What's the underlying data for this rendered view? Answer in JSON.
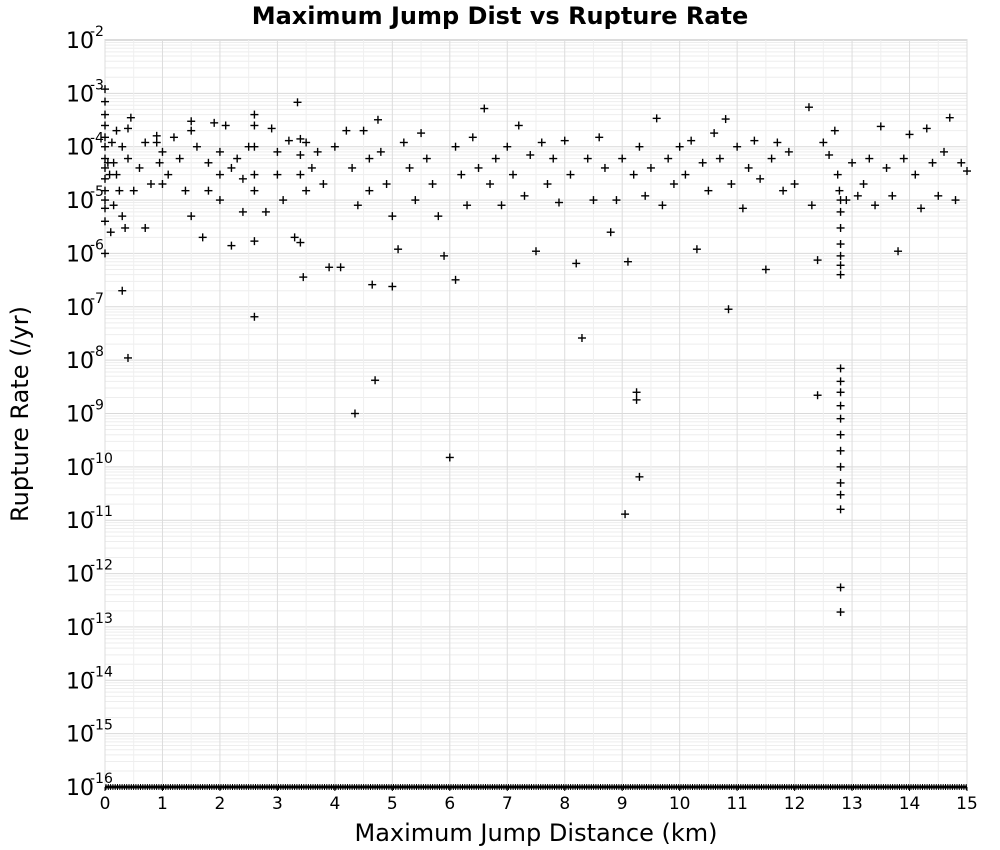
{
  "chart_data": {
    "type": "scatter",
    "title": "Maximum Jump Dist vs Rupture Rate",
    "xlabel": "Maximum Jump Distance (km)",
    "ylabel": "Rupture Rate (/yr)",
    "xlim": [
      0,
      15
    ],
    "ylim": [
      1e-16,
      0.01
    ],
    "yscale": "log",
    "grid": true,
    "legend": "none",
    "marker": "plus",
    "marker_color": "#000000",
    "xticks": [
      "0",
      "1",
      "2",
      "3",
      "4",
      "5",
      "6",
      "7",
      "8",
      "9",
      "10",
      "11",
      "12",
      "13",
      "14",
      "15"
    ],
    "yticks": [
      {
        "base": "10",
        "exp": "-2"
      },
      {
        "base": "10",
        "exp": "-3"
      },
      {
        "base": "10",
        "exp": "-4"
      },
      {
        "base": "10",
        "exp": "-5"
      },
      {
        "base": "10",
        "exp": "-6"
      },
      {
        "base": "10",
        "exp": "-7"
      },
      {
        "base": "10",
        "exp": "-8"
      },
      {
        "base": "10",
        "exp": "-9"
      },
      {
        "base": "10",
        "exp": "-10"
      },
      {
        "base": "10",
        "exp": "-11"
      },
      {
        "base": "10",
        "exp": "-12"
      },
      {
        "base": "10",
        "exp": "-13"
      },
      {
        "base": "10",
        "exp": "-14"
      },
      {
        "base": "10",
        "exp": "-15"
      },
      {
        "base": "10",
        "exp": "-16"
      }
    ],
    "points": [
      [
        0.0,
        0.0012
      ],
      [
        0.0,
        0.0007
      ],
      [
        0.0,
        0.0004
      ],
      [
        0.0,
        0.00025
      ],
      [
        0.0,
        0.00015
      ],
      [
        0.0,
        0.0001
      ],
      [
        0.0,
        6e-05
      ],
      [
        0.0,
        4e-05
      ],
      [
        0.0,
        2.5e-05
      ],
      [
        0.0,
        1.5e-05
      ],
      [
        0.0,
        1e-05
      ],
      [
        0.0,
        7e-06
      ],
      [
        0.0,
        4e-06
      ],
      [
        0.0,
        1e-06
      ],
      [
        0.05,
        5e-05
      ],
      [
        0.08,
        3e-05
      ],
      [
        0.1,
        2.5e-06
      ],
      [
        0.12,
        0.00012
      ],
      [
        0.15,
        5e-05
      ],
      [
        0.15,
        8e-06
      ],
      [
        0.2,
        0.0002
      ],
      [
        0.2,
        3e-05
      ],
      [
        0.25,
        1.5e-05
      ],
      [
        0.3,
        0.0001
      ],
      [
        0.3,
        5e-06
      ],
      [
        0.3,
        2e-07
      ],
      [
        0.35,
        3e-06
      ],
      [
        0.4,
        0.00022
      ],
      [
        0.4,
        6e-05
      ],
      [
        0.4,
        1.1e-08
      ],
      [
        0.45,
        0.00035
      ],
      [
        0.5,
        1.5e-05
      ],
      [
        0.6,
        4e-05
      ],
      [
        0.7,
        0.00012
      ],
      [
        0.7,
        3e-06
      ],
      [
        0.8,
        2e-05
      ],
      [
        0.9,
        0.00016
      ],
      [
        0.9,
        0.00012
      ],
      [
        0.95,
        5e-05
      ],
      [
        1.0,
        8e-05
      ],
      [
        1.0,
        2e-05
      ],
      [
        1.1,
        3e-05
      ],
      [
        1.2,
        0.00015
      ],
      [
        1.3,
        6e-05
      ],
      [
        1.4,
        1.5e-05
      ],
      [
        1.5,
        0.0003
      ],
      [
        1.5,
        0.0002
      ],
      [
        1.5,
        5e-06
      ],
      [
        1.6,
        0.0001
      ],
      [
        1.7,
        2e-06
      ],
      [
        1.8,
        5e-05
      ],
      [
        1.8,
        1.5e-05
      ],
      [
        1.9,
        0.00028
      ],
      [
        2.0,
        8e-05
      ],
      [
        2.0,
        3e-05
      ],
      [
        2.0,
        1e-05
      ],
      [
        2.1,
        0.00025
      ],
      [
        2.2,
        4e-05
      ],
      [
        2.2,
        1.4e-06
      ],
      [
        2.3,
        6e-05
      ],
      [
        2.4,
        2.5e-05
      ],
      [
        2.4,
        6e-06
      ],
      [
        2.5,
        0.0001
      ],
      [
        2.6,
        0.0004
      ],
      [
        2.6,
        0.00025
      ],
      [
        2.6,
        0.0001
      ],
      [
        2.6,
        3e-05
      ],
      [
        2.6,
        1.5e-05
      ],
      [
        2.6,
        1.7e-06
      ],
      [
        2.6,
        6.5e-08
      ],
      [
        2.8,
        6e-06
      ],
      [
        2.9,
        0.00022
      ],
      [
        3.0,
        8e-05
      ],
      [
        3.0,
        3e-05
      ],
      [
        3.1,
        1e-05
      ],
      [
        3.2,
        0.00013
      ],
      [
        3.3,
        2e-06
      ],
      [
        3.35,
        0.00068
      ],
      [
        3.4,
        0.00014
      ],
      [
        3.4,
        7e-05
      ],
      [
        3.4,
        3e-05
      ],
      [
        3.4,
        1.6e-06
      ],
      [
        3.45,
        3.6e-07
      ],
      [
        3.5,
        0.00012
      ],
      [
        3.5,
        1.5e-05
      ],
      [
        3.6,
        4e-05
      ],
      [
        3.7,
        8e-05
      ],
      [
        3.8,
        2e-05
      ],
      [
        3.9,
        5.5e-07
      ],
      [
        4.0,
        0.0001
      ],
      [
        4.1,
        5.5e-07
      ],
      [
        4.2,
        0.0002
      ],
      [
        4.3,
        4e-05
      ],
      [
        4.35,
        1e-09
      ],
      [
        4.4,
        8e-06
      ],
      [
        4.5,
        0.0002
      ],
      [
        4.6,
        6e-05
      ],
      [
        4.6,
        1.5e-05
      ],
      [
        4.65,
        2.6e-07
      ],
      [
        4.7,
        4.2e-09
      ],
      [
        4.75,
        0.00032
      ],
      [
        4.8,
        8e-05
      ],
      [
        4.9,
        2e-05
      ],
      [
        5.0,
        5e-06
      ],
      [
        5.0,
        2.4e-07
      ],
      [
        5.1,
        1.2e-06
      ],
      [
        5.2,
        0.00012
      ],
      [
        5.3,
        4e-05
      ],
      [
        5.4,
        1e-05
      ],
      [
        5.5,
        0.00018
      ],
      [
        5.6,
        6e-05
      ],
      [
        5.7,
        2e-05
      ],
      [
        5.8,
        5e-06
      ],
      [
        5.9,
        9e-07
      ],
      [
        6.0,
        1.5e-10
      ],
      [
        6.1,
        3.2e-07
      ],
      [
        6.1,
        0.0001
      ],
      [
        6.2,
        3e-05
      ],
      [
        6.3,
        8e-06
      ],
      [
        6.4,
        0.00015
      ],
      [
        6.5,
        4e-05
      ],
      [
        6.6,
        0.00052
      ],
      [
        6.7,
        2e-05
      ],
      [
        6.8,
        6e-05
      ],
      [
        6.9,
        8e-06
      ],
      [
        7.0,
        0.0001
      ],
      [
        7.1,
        3e-05
      ],
      [
        7.2,
        0.00025
      ],
      [
        7.3,
        1.2e-05
      ],
      [
        7.4,
        7e-05
      ],
      [
        7.5,
        1.1e-06
      ],
      [
        7.6,
        0.00012
      ],
      [
        7.7,
        2e-05
      ],
      [
        7.8,
        6e-05
      ],
      [
        7.9,
        9e-06
      ],
      [
        8.0,
        0.00013
      ],
      [
        8.1,
        3e-05
      ],
      [
        8.2,
        6.5e-07
      ],
      [
        8.3,
        2.6e-08
      ],
      [
        8.4,
        6e-05
      ],
      [
        8.5,
        1e-05
      ],
      [
        8.6,
        0.00015
      ],
      [
        8.7,
        4e-05
      ],
      [
        8.8,
        2.5e-06
      ],
      [
        8.9,
        1e-05
      ],
      [
        9.0,
        6e-05
      ],
      [
        9.05,
        1.3e-11
      ],
      [
        9.1,
        7e-07
      ],
      [
        9.2,
        3e-05
      ],
      [
        9.25,
        2.5e-09
      ],
      [
        9.25,
        1.8e-09
      ],
      [
        9.3,
        6.5e-11
      ],
      [
        9.3,
        0.0001
      ],
      [
        9.4,
        1.2e-05
      ],
      [
        9.5,
        4e-05
      ],
      [
        9.6,
        0.00034
      ],
      [
        9.7,
        8e-06
      ],
      [
        9.8,
        6e-05
      ],
      [
        9.9,
        2e-05
      ],
      [
        10.0,
        0.0001
      ],
      [
        10.1,
        3e-05
      ],
      [
        10.2,
        0.00013
      ],
      [
        10.3,
        1.2e-06
      ],
      [
        10.4,
        5e-05
      ],
      [
        10.5,
        1.5e-05
      ],
      [
        10.6,
        0.00018
      ],
      [
        10.7,
        6e-05
      ],
      [
        10.8,
        0.00033
      ],
      [
        10.85,
        9e-08
      ],
      [
        10.9,
        2e-05
      ],
      [
        11.0,
        0.0001
      ],
      [
        11.1,
        7e-06
      ],
      [
        11.2,
        4e-05
      ],
      [
        11.3,
        0.00013
      ],
      [
        11.4,
        2.5e-05
      ],
      [
        11.5,
        5e-07
      ],
      [
        11.6,
        6e-05
      ],
      [
        11.7,
        0.00012
      ],
      [
        11.8,
        1.5e-05
      ],
      [
        11.9,
        8e-05
      ],
      [
        12.0,
        2e-05
      ],
      [
        12.25,
        0.00055
      ],
      [
        12.3,
        8e-06
      ],
      [
        12.4,
        2.2e-09
      ],
      [
        12.4,
        7.5e-07
      ],
      [
        12.5,
        0.00012
      ],
      [
        12.6,
        7e-05
      ],
      [
        12.7,
        0.0002
      ],
      [
        12.75,
        3e-05
      ],
      [
        12.78,
        1.5e-05
      ],
      [
        12.8,
        1e-05
      ],
      [
        12.8,
        6e-06
      ],
      [
        12.8,
        3e-06
      ],
      [
        12.8,
        1.5e-06
      ],
      [
        12.8,
        9e-07
      ],
      [
        12.8,
        6e-07
      ],
      [
        12.8,
        4e-07
      ],
      [
        12.8,
        7e-09
      ],
      [
        12.8,
        4e-09
      ],
      [
        12.8,
        2.5e-09
      ],
      [
        12.8,
        1.4e-09
      ],
      [
        12.8,
        8e-10
      ],
      [
        12.8,
        4e-10
      ],
      [
        12.8,
        2e-10
      ],
      [
        12.8,
        1e-10
      ],
      [
        12.8,
        5e-11
      ],
      [
        12.8,
        3e-11
      ],
      [
        12.8,
        1.6e-11
      ],
      [
        12.8,
        5.5e-13
      ],
      [
        12.8,
        1.9e-13
      ],
      [
        12.9,
        1e-05
      ],
      [
        13.0,
        5e-05
      ],
      [
        13.1,
        1.2e-05
      ],
      [
        13.2,
        2e-05
      ],
      [
        13.3,
        6e-05
      ],
      [
        13.4,
        8e-06
      ],
      [
        13.5,
        0.00024
      ],
      [
        13.6,
        4e-05
      ],
      [
        13.7,
        1.2e-05
      ],
      [
        13.8,
        1.1e-06
      ],
      [
        13.9,
        6e-05
      ],
      [
        14.0,
        0.00017
      ],
      [
        14.1,
        3e-05
      ],
      [
        14.2,
        7e-06
      ],
      [
        14.3,
        0.00022
      ],
      [
        14.4,
        5e-05
      ],
      [
        14.5,
        1.2e-05
      ],
      [
        14.6,
        8e-05
      ],
      [
        14.7,
        0.00035
      ],
      [
        14.8,
        1e-05
      ],
      [
        14.9,
        5e-05
      ],
      [
        15.0,
        3.5e-05
      ]
    ],
    "floor_value": 1e-16,
    "floor_density_note": "dense row of points along the lower bound"
  }
}
